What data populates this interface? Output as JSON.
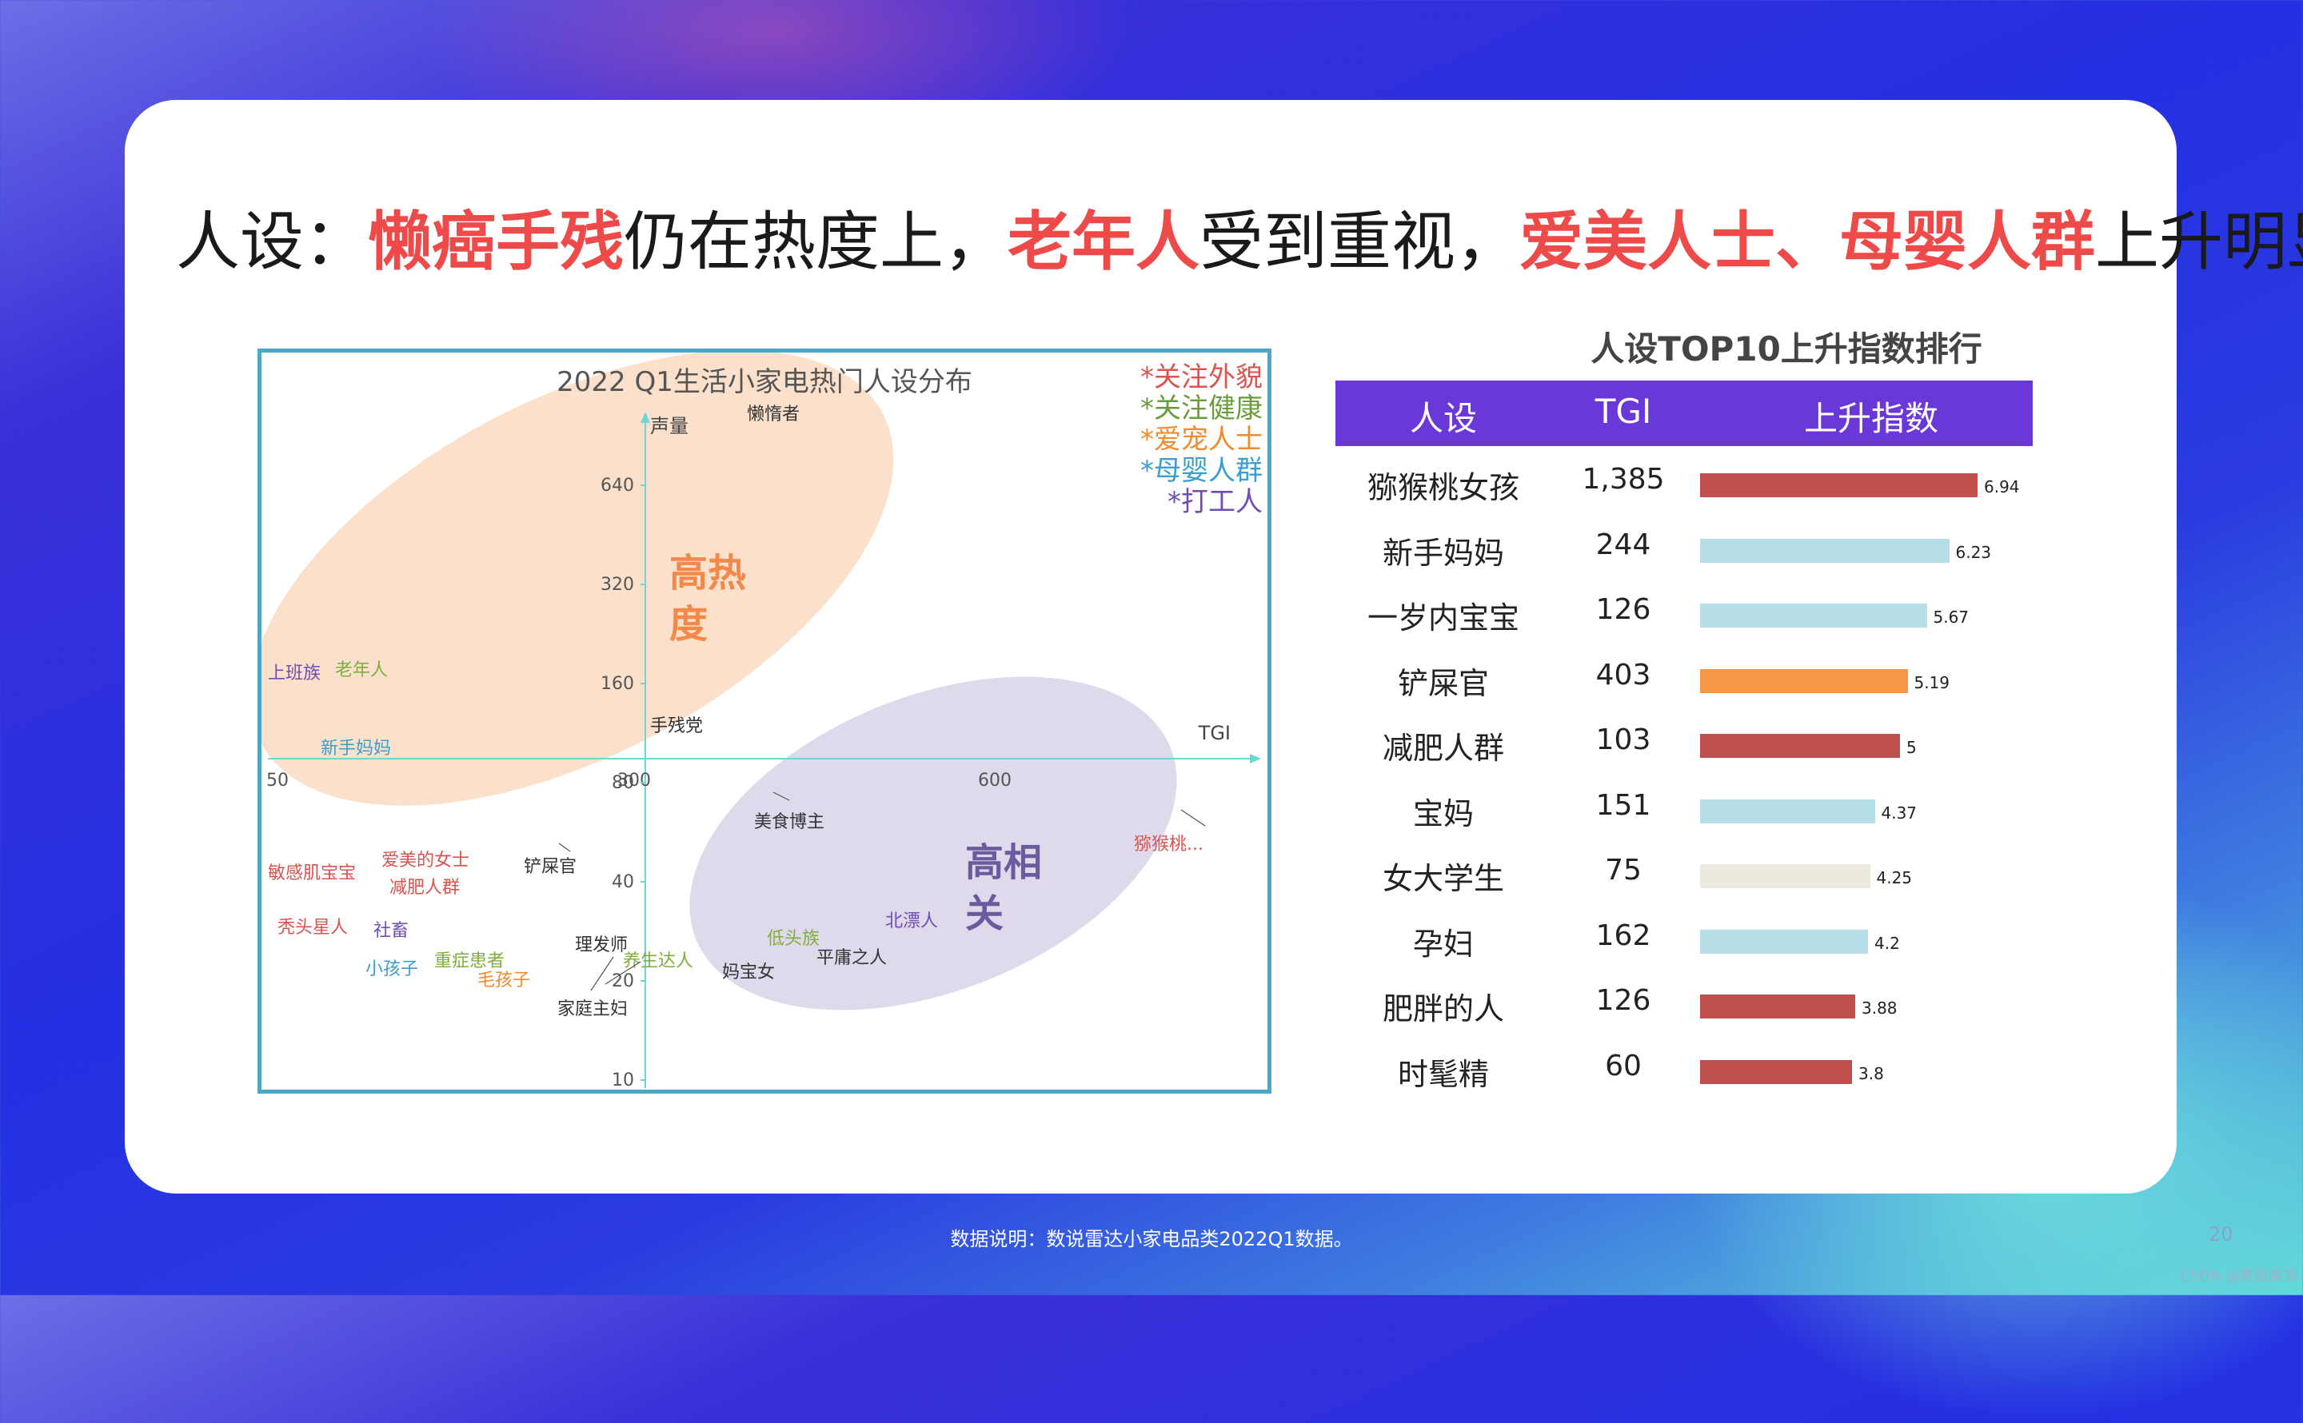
{
  "headline": {
    "prefix": "人设：",
    "hl1": "懒癌手残",
    "mid1": "仍在热度上，",
    "hl2": "老年人",
    "mid2": "受到重视，",
    "hl3": "爱美人士、母婴人群",
    "suffix": "上升明显"
  },
  "footnote": "数据说明：数说雷达小家电品类2022Q1数据。",
  "page_number": "20",
  "watermark": "CSDN @数说故事",
  "colors": {
    "accent_red": "#ef4a4a",
    "header_purple": "#6a37d8",
    "frame": "#4aa8c6",
    "axis": "#6fd6d6"
  },
  "chart_data": [
    {
      "type": "scatter",
      "title": "2022 Q1生活小家电热门人设分布",
      "xlabel": "TGI",
      "ylabel": "声量",
      "x_ticks": [
        "50",
        "300",
        "600"
      ],
      "y_ticks": [
        "640",
        "320",
        "160",
        "80",
        "40",
        "20",
        "10"
      ],
      "y_scale": "log",
      "regions": [
        {
          "label": "高热度",
          "color": "#f7c8a2"
        },
        {
          "label": "高相关",
          "color": "#c9c0df"
        }
      ],
      "legend": [
        {
          "label": "*关注外貌",
          "color": "#d9534f"
        },
        {
          "label": "*关注健康",
          "color": "#6a9b3c"
        },
        {
          "label": "*爱宠人士",
          "color": "#f28a2e"
        },
        {
          "label": "*母婴人群",
          "color": "#3a9fcf"
        },
        {
          "label": "*打工人",
          "color": "#6f4db3"
        }
      ],
      "points": [
        {
          "label": "懒惰者",
          "group": "other"
        },
        {
          "label": "上班族",
          "group": "打工人"
        },
        {
          "label": "老年人",
          "group": "关注健康"
        },
        {
          "label": "新手妈妈",
          "group": "母婴人群"
        },
        {
          "label": "手残党",
          "group": "other"
        },
        {
          "label": "美食博主",
          "group": "other"
        },
        {
          "label": "猕猴桃...",
          "group": "关注外貌"
        },
        {
          "label": "敏感肌宝宝",
          "group": "关注外貌"
        },
        {
          "label": "爱美的女士",
          "group": "关注外貌"
        },
        {
          "label": "减肥人群",
          "group": "关注外貌"
        },
        {
          "label": "铲屎官",
          "group": "other"
        },
        {
          "label": "秃头星人",
          "group": "关注外貌"
        },
        {
          "label": "社畜",
          "group": "打工人"
        },
        {
          "label": "理发师",
          "group": "other"
        },
        {
          "label": "重症患者",
          "group": "关注健康"
        },
        {
          "label": "小孩子",
          "group": "母婴人群"
        },
        {
          "label": "毛孩子",
          "group": "爱宠人士"
        },
        {
          "label": "养生达人",
          "group": "关注健康"
        },
        {
          "label": "家庭主妇",
          "group": "other"
        },
        {
          "label": "妈宝女",
          "group": "other"
        },
        {
          "label": "低头族",
          "group": "关注健康"
        },
        {
          "label": "平庸之人",
          "group": "other"
        },
        {
          "label": "北漂人",
          "group": "打工人"
        }
      ]
    },
    {
      "type": "bar",
      "title": "人设TOP10上升指数排行",
      "columns": [
        "人设",
        "TGI",
        "上升指数"
      ],
      "xlim": [
        0,
        7
      ],
      "rows": [
        {
          "name": "猕猴桃女孩",
          "tgi": "1,385",
          "value": 6.94,
          "label": "6.94",
          "color": "#c0504d"
        },
        {
          "name": "新手妈妈",
          "tgi": "244",
          "value": 6.23,
          "label": "6.23",
          "color": "#b7dde6"
        },
        {
          "name": "一岁内宝宝",
          "tgi": "126",
          "value": 5.67,
          "label": "5.67",
          "color": "#b7dde6"
        },
        {
          "name": "铲屎官",
          "tgi": "403",
          "value": 5.19,
          "label": "5.19",
          "color": "#f79646"
        },
        {
          "name": "减肥人群",
          "tgi": "103",
          "value": 5,
          "label": "5",
          "color": "#c0504d"
        },
        {
          "name": "宝妈",
          "tgi": "151",
          "value": 4.37,
          "label": "4.37",
          "color": "#b7dde6"
        },
        {
          "name": "女大学生",
          "tgi": "75",
          "value": 4.25,
          "label": "4.25",
          "color": "#eceadf"
        },
        {
          "name": "孕妇",
          "tgi": "162",
          "value": 4.2,
          "label": "4.2",
          "color": "#b7dde6"
        },
        {
          "name": "肥胖的人",
          "tgi": "126",
          "value": 3.88,
          "label": "3.88",
          "color": "#c0504d"
        },
        {
          "name": "时髦精",
          "tgi": "60",
          "value": 3.8,
          "label": "3.8",
          "color": "#c0504d"
        }
      ]
    }
  ]
}
